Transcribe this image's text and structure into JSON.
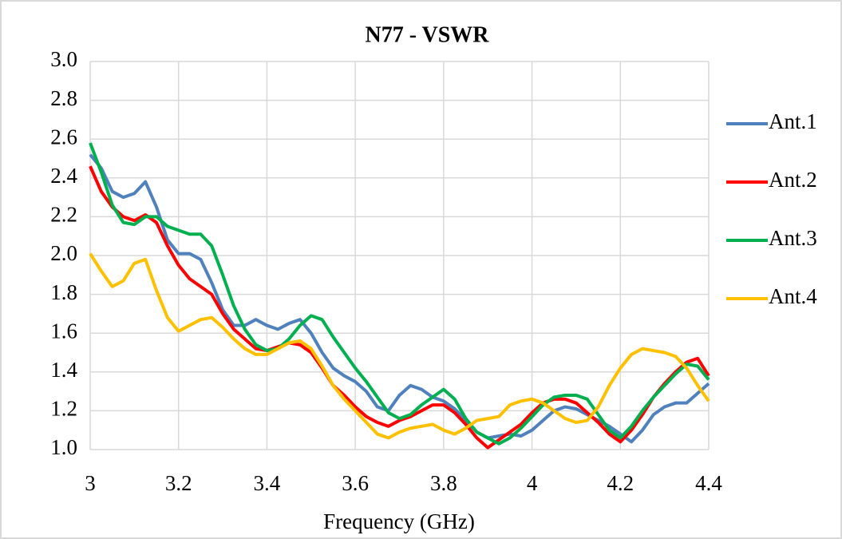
{
  "chart_data": {
    "type": "line",
    "title": "N77 - VSWR",
    "x_label": "Frequency  (GHz)",
    "x": [
      3,
      3.025,
      3.05,
      3.075,
      3.1,
      3.125,
      3.15,
      3.175,
      3.2,
      3.225,
      3.25,
      3.275,
      3.3,
      3.325,
      3.35,
      3.375,
      3.4,
      3.425,
      3.45,
      3.475,
      3.5,
      3.525,
      3.55,
      3.575,
      3.6,
      3.625,
      3.65,
      3.675,
      3.7,
      3.725,
      3.75,
      3.775,
      3.8,
      3.825,
      3.85,
      3.875,
      3.9,
      3.925,
      3.95,
      3.975,
      4,
      4.025,
      4.05,
      4.075,
      4.1,
      4.125,
      4.15,
      4.175,
      4.2,
      4.225,
      4.25,
      4.275,
      4.3,
      4.325,
      4.35,
      4.375,
      4.4
    ],
    "series": [
      {
        "name": "Ant.1",
        "color": "#4f81bd",
        "values": [
          2.52,
          2.45,
          2.33,
          2.3,
          2.32,
          2.38,
          2.25,
          2.08,
          2.01,
          2.01,
          1.98,
          1.86,
          1.72,
          1.64,
          1.64,
          1.67,
          1.64,
          1.62,
          1.65,
          1.67,
          1.6,
          1.5,
          1.42,
          1.38,
          1.35,
          1.3,
          1.22,
          1.2,
          1.28,
          1.33,
          1.31,
          1.27,
          1.25,
          1.21,
          1.15,
          1.09,
          1.06,
          1.07,
          1.08,
          1.07,
          1.1,
          1.15,
          1.2,
          1.22,
          1.21,
          1.18,
          1.15,
          1.12,
          1.08,
          1.04,
          1.1,
          1.18,
          1.22,
          1.24,
          1.24,
          1.29,
          1.34
        ]
      },
      {
        "name": "Ant.2",
        "color": "#ff0000",
        "values": [
          2.46,
          2.33,
          2.25,
          2.2,
          2.18,
          2.21,
          2.17,
          2.05,
          1.95,
          1.88,
          1.84,
          1.8,
          1.7,
          1.62,
          1.57,
          1.52,
          1.51,
          1.53,
          1.55,
          1.54,
          1.5,
          1.42,
          1.33,
          1.28,
          1.22,
          1.17,
          1.14,
          1.12,
          1.15,
          1.17,
          1.2,
          1.23,
          1.23,
          1.19,
          1.13,
          1.06,
          1.01,
          1.05,
          1.09,
          1.13,
          1.19,
          1.24,
          1.26,
          1.26,
          1.24,
          1.19,
          1.14,
          1.08,
          1.04,
          1.1,
          1.18,
          1.27,
          1.34,
          1.4,
          1.45,
          1.47,
          1.38
        ]
      },
      {
        "name": "Ant.3",
        "color": "#00b050",
        "values": [
          2.58,
          2.43,
          2.26,
          2.17,
          2.16,
          2.2,
          2.2,
          2.15,
          2.13,
          2.11,
          2.11,
          2.05,
          1.9,
          1.74,
          1.62,
          1.54,
          1.51,
          1.52,
          1.57,
          1.64,
          1.69,
          1.67,
          1.58,
          1.5,
          1.42,
          1.35,
          1.27,
          1.19,
          1.16,
          1.18,
          1.23,
          1.27,
          1.31,
          1.26,
          1.16,
          1.09,
          1.06,
          1.03,
          1.06,
          1.11,
          1.17,
          1.23,
          1.27,
          1.28,
          1.28,
          1.26,
          1.18,
          1.1,
          1.06,
          1.12,
          1.2,
          1.27,
          1.33,
          1.39,
          1.44,
          1.43,
          1.36
        ]
      },
      {
        "name": "Ant.4",
        "color": "#ffc000",
        "values": [
          2.01,
          1.92,
          1.84,
          1.87,
          1.96,
          1.98,
          1.82,
          1.68,
          1.61,
          1.64,
          1.67,
          1.68,
          1.63,
          1.57,
          1.52,
          1.49,
          1.49,
          1.52,
          1.55,
          1.56,
          1.52,
          1.43,
          1.33,
          1.26,
          1.2,
          1.14,
          1.08,
          1.06,
          1.09,
          1.11,
          1.12,
          1.13,
          1.1,
          1.08,
          1.11,
          1.15,
          1.16,
          1.17,
          1.23,
          1.25,
          1.26,
          1.24,
          1.2,
          1.16,
          1.14,
          1.15,
          1.22,
          1.33,
          1.42,
          1.49,
          1.52,
          1.51,
          1.5,
          1.48,
          1.42,
          1.33,
          1.25
        ]
      }
    ],
    "xlim": [
      3,
      4.4
    ],
    "xticks": [
      3,
      3.2,
      3.4,
      3.6,
      3.8,
      4,
      4.2,
      4.4
    ],
    "ylim": [
      1,
      3
    ],
    "yticks": [
      {
        "value": 1,
        "label": "1.0"
      },
      1.2,
      1.4,
      1.6,
      1.8,
      {
        "value": 2,
        "label": "2.0"
      },
      2.2,
      2.4,
      2.6,
      2.8,
      {
        "value": 3,
        "label": "3.0"
      }
    ],
    "grid": true,
    "legend": "right"
  }
}
